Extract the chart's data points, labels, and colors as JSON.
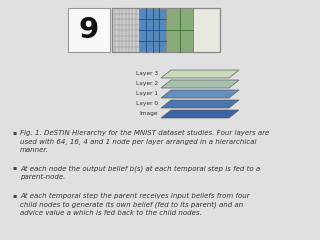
{
  "bg_color": "#e0e0e0",
  "bullet_points": [
    "Fig. 1. DeSTIN Hierarchy for the MNIST dataset studies. Four layers are\nused with 64, 16, 4 and 1 node per layer arranged in a hierarchical\nmanner.",
    "At each node the output belief b(s) at each temporal step is fed to a\nparent-node.",
    "At each temporal step the parent receives input beliefs from four\nchild nodes to generate its own belief (fed to its parent) and an\nadvice value a which is fed back to the child nodes."
  ],
  "bullet_font_size": 5.0,
  "layer_labels": [
    "Layer 3",
    "Layer 2",
    "Layer 1",
    "Layer 0",
    "Image"
  ],
  "layer_colors_top": [
    "#c8d8b8",
    "#9fbfaa",
    "#5588bb",
    "#3a6aaa",
    "#2a55a0"
  ],
  "layer_colors_side": [
    "#a8b898",
    "#7f9f8a",
    "#3a6899",
    "#2a5090",
    "#1a4080"
  ],
  "digit_facecolor": "#f8f8f8",
  "panel1_color": "#cccccc",
  "panel2_color": "#5588bb",
  "panel3_color": "#88aa78",
  "panel4_color": "#e8e8e0",
  "grid_line_color": "#666666",
  "text_color": "#333333",
  "bullet_symbol": "▪"
}
